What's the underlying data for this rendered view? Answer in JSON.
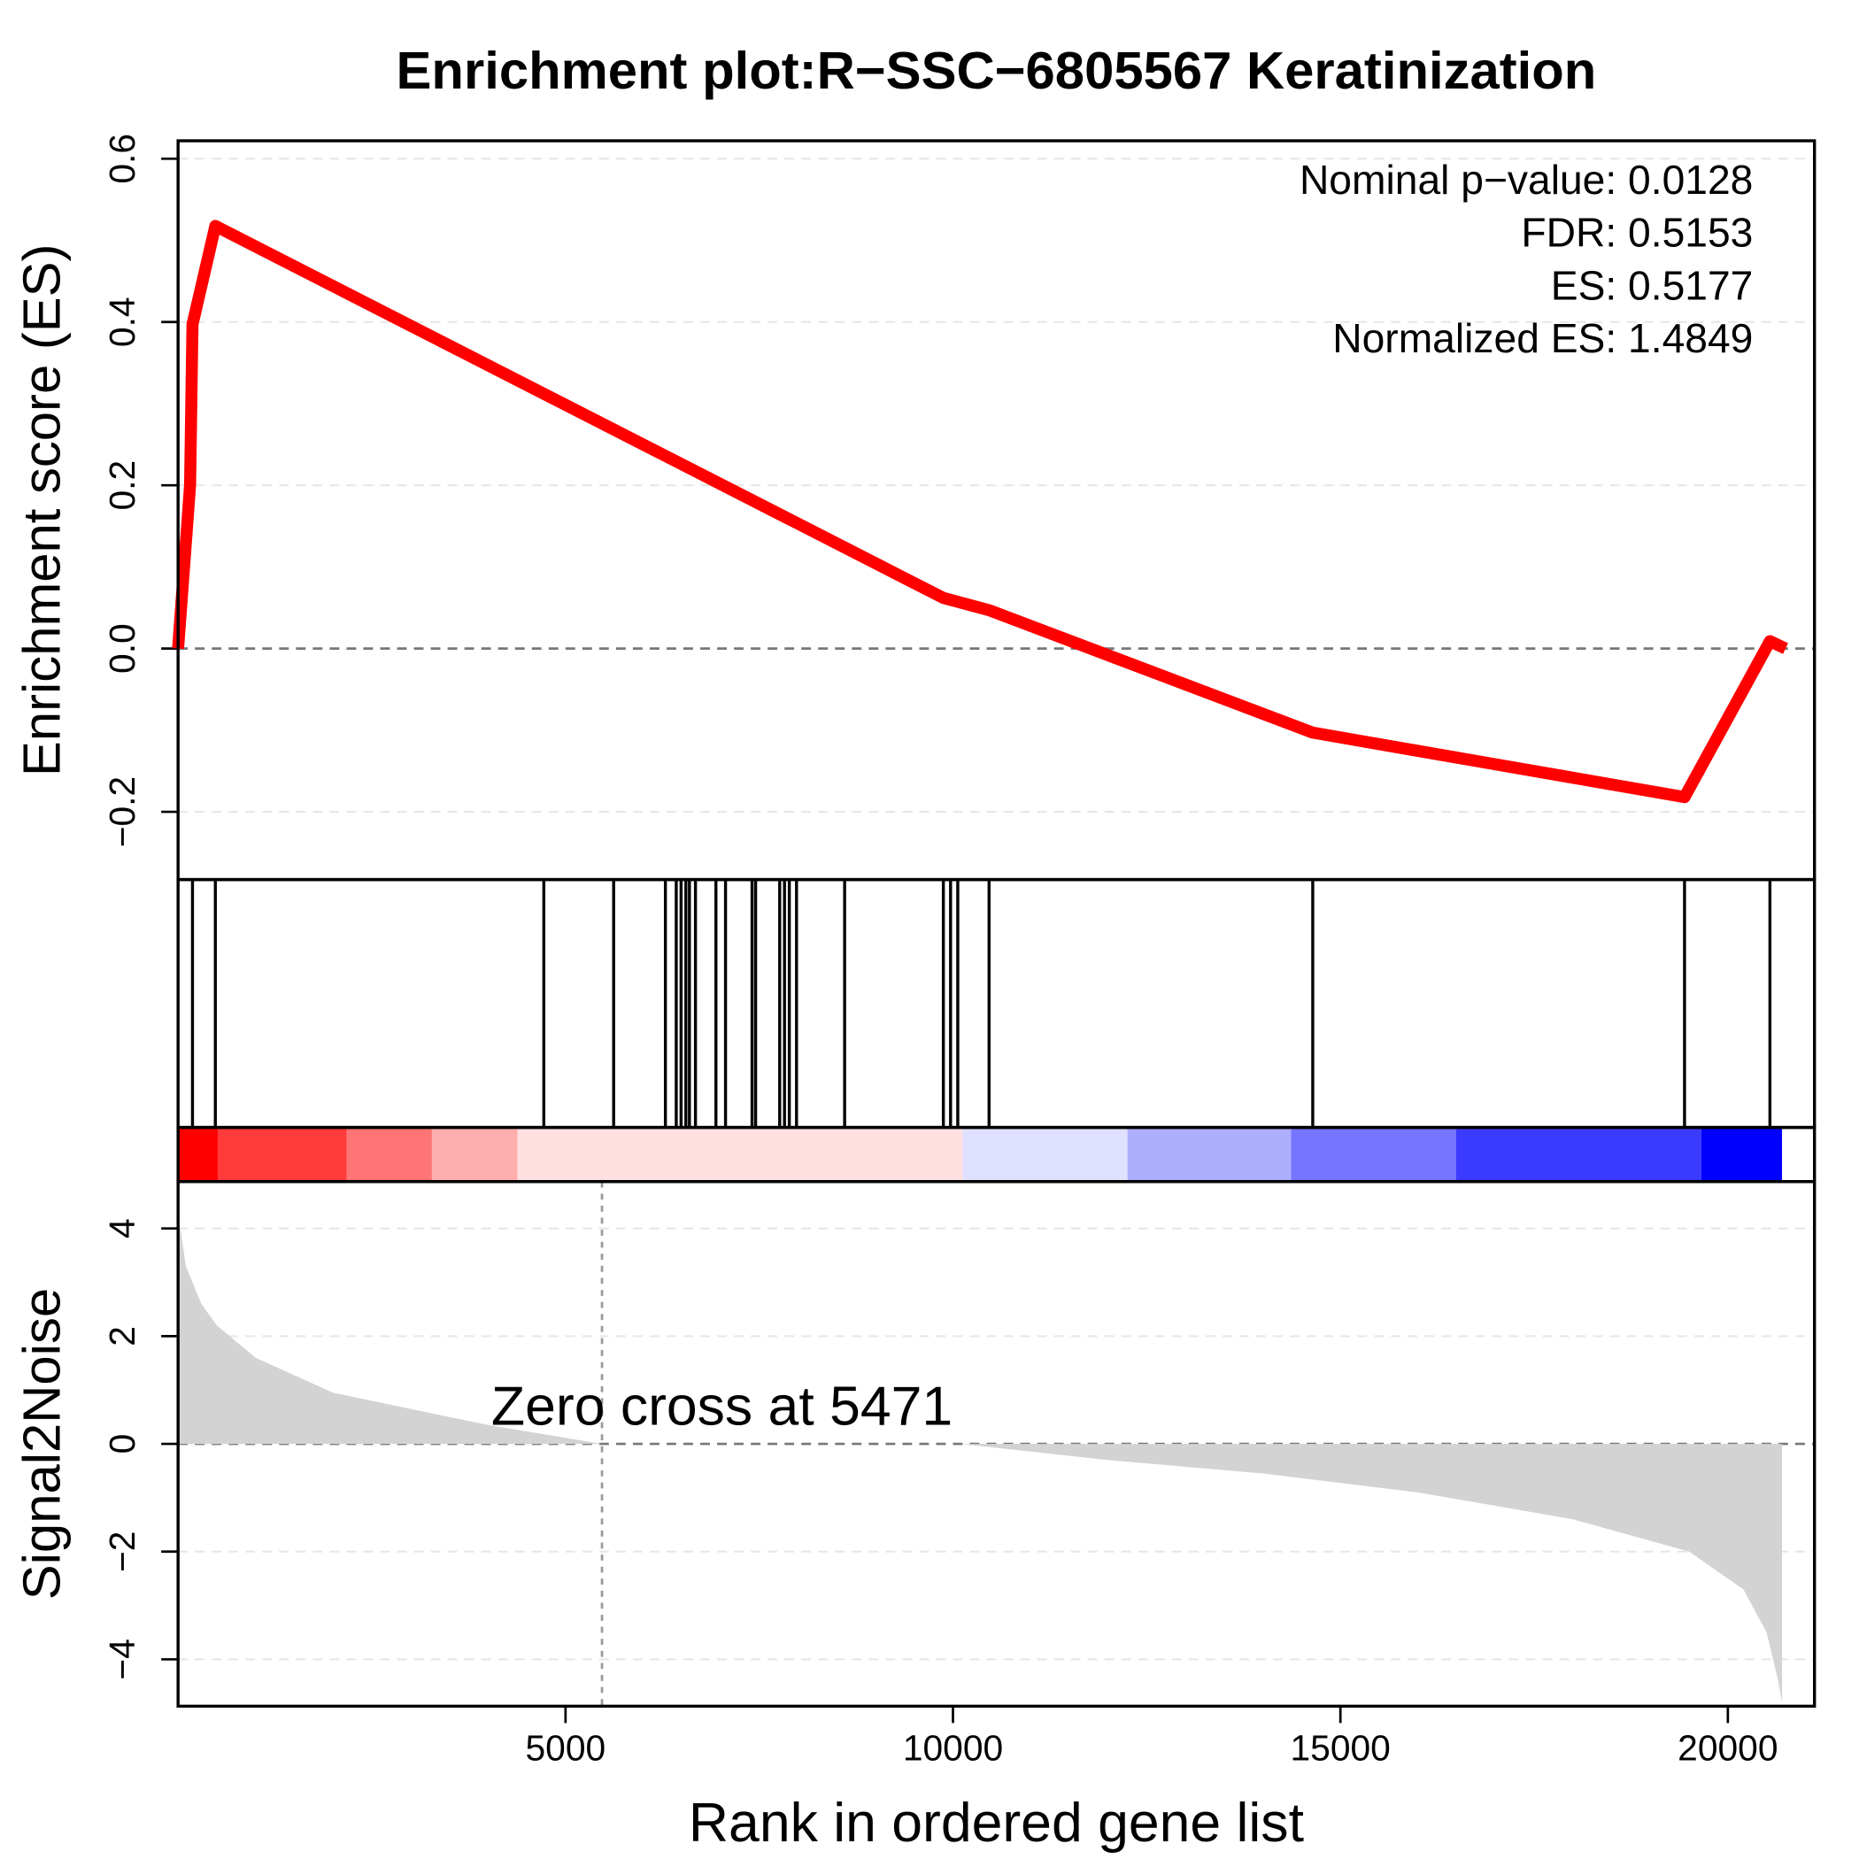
{
  "chart_data": [
    {
      "type": "line",
      "title": "Enrichment plot:R−SSC−6805567 Keratinization",
      "y_label": "Enrichment score (ES)",
      "x": [
        0,
        155,
        186,
        481,
        9876,
        10466,
        14643,
        19441,
        20543,
        20745
      ],
      "values": [
        0,
        0.2,
        0.397,
        0.5177,
        0.062,
        0.047,
        -0.103,
        -0.182,
        0.009,
        0
      ],
      "color": "#ff0000",
      "xlim": [
        0,
        21118
      ],
      "ylim": [
        -0.283,
        0.622
      ],
      "yticks": [
        {
          "value": -0.2,
          "label": "−0.2"
        },
        {
          "value": 0,
          "label": "0.0"
        },
        0.2,
        0.4,
        0.6
      ],
      "grid": true,
      "annotations": [
        "Nominal p−value: 0.0128",
        "FDR: 0.5153",
        "ES: 0.5177",
        "Normalized ES: 1.4849"
      ]
    },
    {
      "type": "rug",
      "xlim": [
        0,
        21118
      ],
      "x": [
        186,
        481,
        4720,
        5621,
        6289,
        6429,
        6491,
        6553,
        6599,
        6677,
        6941,
        7065,
        7407,
        7453,
        7764,
        7826,
        7888,
        7981,
        8602,
        9876,
        9969,
        10062,
        10466,
        14643,
        19441,
        20543
      ]
    },
    {
      "type": "colorbar",
      "xlim": [
        0,
        21118
      ],
      "bins": [
        0,
        512,
        2174,
        3276,
        4379,
        10124,
        12252,
        14363,
        16491,
        19658,
        20699
      ],
      "colors": [
        "#ff0000",
        "#ff3b3b",
        "#ff7575",
        "#ffaeae",
        "#ffe0e0",
        "#e0e0ff",
        "#aeaeff",
        "#7575ff",
        "#3b3bff",
        "#0000ff"
      ]
    },
    {
      "type": "area",
      "y_label": "Signal2Noise",
      "x_label": "Rank in ordered gene list",
      "x": [
        0,
        100,
        300,
        500,
        1000,
        2000,
        3000,
        4000,
        5471,
        10100,
        12000,
        14000,
        16000,
        18000,
        19500,
        20200,
        20500,
        20650,
        20700
      ],
      "values": [
        4.3,
        3.3,
        2.6,
        2.2,
        1.6,
        0.95,
        0.65,
        0.35,
        0,
        0,
        -0.3,
        -0.55,
        -0.9,
        -1.4,
        -2.0,
        -2.7,
        -3.5,
        -4.4,
        -4.8
      ],
      "color": "#d3d3d3",
      "xlim": [
        0,
        21118
      ],
      "ylim": [
        -4.87,
        4.87
      ],
      "xticks": [
        5000,
        10000,
        15000,
        20000
      ],
      "yticks": [
        {
          "value": -4,
          "label": "−4"
        },
        {
          "value": -2,
          "label": "−2"
        },
        0,
        2,
        4
      ],
      "grid": true,
      "zero_cross": 5471,
      "annotation": "Zero cross at 5471"
    }
  ]
}
